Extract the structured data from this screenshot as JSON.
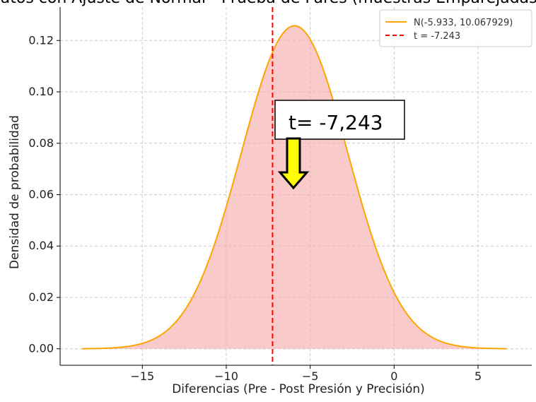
{
  "chart_data": {
    "type": "area",
    "title": "de datos con Ajuste de Normal - Prueba de Pares (muestras Emparejadas) (Pr",
    "xlabel": "Diferencias (Pre - Post Presión y Precisión)",
    "ylabel": "Densidad de probabilidad",
    "xlim": [
      -19.9,
      8.2
    ],
    "ylim": [
      -0.0064,
      0.133
    ],
    "x_ticks": [
      -15,
      -10,
      -5,
      0,
      5
    ],
    "x_tick_labels": [
      "−15",
      "−10",
      "−5",
      "0",
      "5"
    ],
    "y_ticks": [
      0.0,
      0.02,
      0.04,
      0.06,
      0.08,
      0.1,
      0.12
    ],
    "y_tick_labels": [
      "0.00",
      "0.02",
      "0.04",
      "0.06",
      "0.08",
      "0.10",
      "0.12"
    ],
    "grid": true,
    "legend_position": "top-right",
    "series": [
      {
        "name": "N(-5.933, 10.067929)",
        "kind": "normal-pdf-curve",
        "mean": -5.933,
        "variance": 10.067929,
        "x_range": [
          -18.6,
          6.7
        ],
        "color": "#ffa500",
        "fill_color": "#f4a6a6"
      },
      {
        "name": "t = -7.243",
        "kind": "vertical-line",
        "x": -7.243,
        "style": "dashed",
        "color": "#ff0000"
      }
    ],
    "annotations": [
      {
        "text": "t= -7,243",
        "kind": "boxed-label",
        "arrow": "down",
        "arrow_color": "#ffff00"
      }
    ]
  }
}
